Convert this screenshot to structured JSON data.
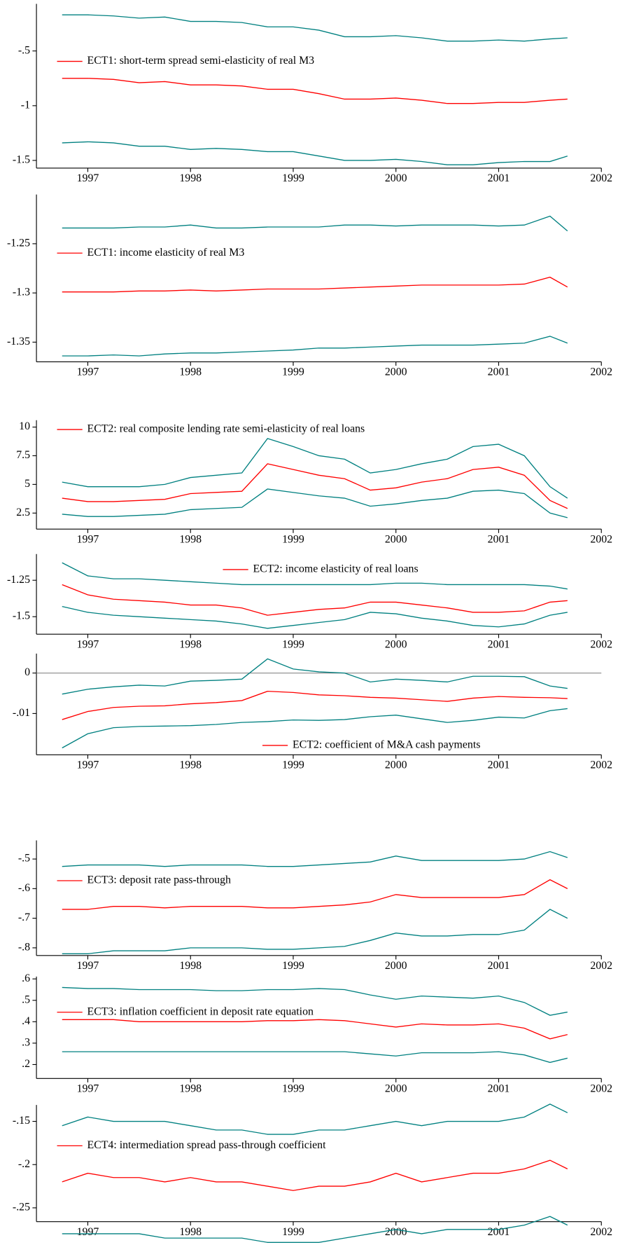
{
  "chart_data": [
    {
      "type": "line",
      "legend": "center left",
      "xlim": [
        1996.5,
        2002
      ],
      "xticks": [
        1997,
        1998,
        1999,
        2000,
        2001,
        2002
      ],
      "ylim": [
        -1.57,
        -0.07
      ],
      "yticks": [
        {
          "value": -0.5,
          "label": "-.5"
        },
        -1,
        -1.5
      ],
      "x": [
        1996.75,
        1997,
        1997.25,
        1997.5,
        1997.75,
        1998,
        1998.25,
        1998.5,
        1998.75,
        1999,
        1999.25,
        1999.5,
        1999.75,
        2000,
        2000.25,
        2000.5,
        2000.75,
        2001,
        2001.25,
        2001.5,
        2001.67
      ],
      "series": [
        {
          "color": "#008080",
          "values": [
            -0.17,
            -0.17,
            -0.18,
            -0.2,
            -0.19,
            -0.23,
            -0.23,
            -0.24,
            -0.28,
            -0.28,
            -0.31,
            -0.37,
            -0.37,
            -0.36,
            -0.38,
            -0.41,
            -0.41,
            -0.4,
            -0.41,
            -0.39,
            -0.38
          ]
        },
        {
          "name": "ECT1: short-term spread semi-elasticity of real M3",
          "color": "#ff0000",
          "values": [
            -0.75,
            -0.75,
            -0.76,
            -0.79,
            -0.78,
            -0.81,
            -0.81,
            -0.82,
            -0.85,
            -0.85,
            -0.89,
            -0.94,
            -0.94,
            -0.93,
            -0.95,
            -0.98,
            -0.98,
            -0.97,
            -0.97,
            -0.95,
            -0.94
          ]
        },
        {
          "color": "#008080",
          "values": [
            -1.34,
            -1.33,
            -1.34,
            -1.37,
            -1.37,
            -1.4,
            -1.39,
            -1.4,
            -1.42,
            -1.42,
            -1.46,
            -1.5,
            -1.5,
            -1.49,
            -1.51,
            -1.54,
            -1.54,
            -1.52,
            -1.51,
            -1.51,
            -1.46
          ]
        }
      ]
    },
    {
      "type": "line",
      "legend": "center left",
      "xlim": [
        1996.5,
        2002
      ],
      "xticks": [
        1997,
        1998,
        1999,
        2000,
        2001,
        2002
      ],
      "ylim": [
        -1.37,
        -1.2
      ],
      "yticks": [
        -1.25,
        -1.3,
        -1.35
      ],
      "x": [
        1996.75,
        1997,
        1997.25,
        1997.5,
        1997.75,
        1998,
        1998.25,
        1998.5,
        1998.75,
        1999,
        1999.25,
        1999.5,
        1999.75,
        2000,
        2000.25,
        2000.5,
        2000.75,
        2001,
        2001.25,
        2001.5,
        2001.67
      ],
      "series": [
        {
          "color": "#008080",
          "values": [
            -1.234,
            -1.234,
            -1.234,
            -1.233,
            -1.233,
            -1.231,
            -1.234,
            -1.234,
            -1.233,
            -1.233,
            -1.233,
            -1.231,
            -1.231,
            -1.232,
            -1.231,
            -1.231,
            -1.231,
            -1.232,
            -1.231,
            -1.222,
            -1.237
          ]
        },
        {
          "name": "ECT1: income elasticity of real M3",
          "color": "#ff0000",
          "values": [
            -1.299,
            -1.299,
            -1.299,
            -1.298,
            -1.298,
            -1.297,
            -1.298,
            -1.297,
            -1.296,
            -1.296,
            -1.296,
            -1.295,
            -1.294,
            -1.293,
            -1.292,
            -1.292,
            -1.292,
            -1.292,
            -1.291,
            -1.284,
            -1.294
          ]
        },
        {
          "color": "#008080",
          "values": [
            -1.364,
            -1.364,
            -1.363,
            -1.364,
            -1.362,
            -1.361,
            -1.361,
            -1.36,
            -1.359,
            -1.358,
            -1.356,
            -1.356,
            -1.355,
            -1.354,
            -1.353,
            -1.353,
            -1.353,
            -1.352,
            -1.351,
            -1.344,
            -1.351
          ]
        }
      ]
    },
    {
      "type": "line",
      "legend": "upper left",
      "xlim": [
        1996.5,
        2002
      ],
      "xticks": [
        1997,
        1998,
        1999,
        2000,
        2001,
        2002
      ],
      "ylim": [
        1.1,
        10.6
      ],
      "yticks": [
        10,
        7.5,
        5,
        2.5
      ],
      "x": [
        1996.75,
        1997,
        1997.25,
        1997.5,
        1997.75,
        1998,
        1998.25,
        1998.5,
        1998.75,
        1999,
        1999.25,
        1999.5,
        1999.75,
        2000,
        2000.25,
        2000.5,
        2000.75,
        2001,
        2001.25,
        2001.5,
        2001.67
      ],
      "series": [
        {
          "color": "#008080",
          "values": [
            5.2,
            4.8,
            4.8,
            4.8,
            5.0,
            5.6,
            5.8,
            6.0,
            9.0,
            8.3,
            7.5,
            7.2,
            6.0,
            6.3,
            6.8,
            7.2,
            8.3,
            8.5,
            7.5,
            4.8,
            3.8
          ]
        },
        {
          "name": "ECT2: real composite lending rate semi-elasticity of real loans",
          "color": "#ff0000",
          "values": [
            3.8,
            3.5,
            3.5,
            3.6,
            3.7,
            4.2,
            4.3,
            4.4,
            6.8,
            6.3,
            5.8,
            5.5,
            4.5,
            4.7,
            5.2,
            5.5,
            6.3,
            6.5,
            5.8,
            3.6,
            2.9
          ]
        },
        {
          "color": "#008080",
          "values": [
            2.4,
            2.2,
            2.2,
            2.3,
            2.4,
            2.8,
            2.9,
            3.0,
            4.6,
            4.3,
            4.0,
            3.8,
            3.1,
            3.3,
            3.6,
            3.8,
            4.4,
            4.5,
            4.2,
            2.5,
            2.1
          ]
        }
      ]
    },
    {
      "type": "line",
      "legend": "upper center",
      "xlim": [
        1996.5,
        2002
      ],
      "xticks": [
        1997,
        1998,
        1999,
        2000,
        2001,
        2002
      ],
      "ylim": [
        -1.62,
        -1.07
      ],
      "yticks": [
        -1.25,
        -1.5
      ],
      "x": [
        1996.75,
        1997,
        1997.25,
        1997.5,
        1997.75,
        1998,
        1998.25,
        1998.5,
        1998.75,
        1999,
        1999.25,
        1999.5,
        1999.75,
        2000,
        2000.25,
        2000.5,
        2000.75,
        2001,
        2001.25,
        2001.5,
        2001.67
      ],
      "series": [
        {
          "color": "#008080",
          "values": [
            -1.13,
            -1.22,
            -1.24,
            -1.24,
            -1.25,
            -1.26,
            -1.27,
            -1.28,
            -1.28,
            -1.28,
            -1.28,
            -1.28,
            -1.28,
            -1.27,
            -1.27,
            -1.28,
            -1.28,
            -1.28,
            -1.28,
            -1.29,
            -1.31
          ]
        },
        {
          "name": "ECT2: income elasticity of real loans",
          "color": "#ff0000",
          "values": [
            -1.28,
            -1.35,
            -1.38,
            -1.39,
            -1.4,
            -1.42,
            -1.42,
            -1.44,
            -1.49,
            -1.47,
            -1.45,
            -1.44,
            -1.4,
            -1.4,
            -1.42,
            -1.44,
            -1.47,
            -1.47,
            -1.46,
            -1.4,
            -1.39
          ]
        },
        {
          "color": "#008080",
          "values": [
            -1.43,
            -1.47,
            -1.49,
            -1.5,
            -1.51,
            -1.52,
            -1.53,
            -1.55,
            -1.58,
            -1.56,
            -1.54,
            -1.52,
            -1.47,
            -1.48,
            -1.51,
            -1.53,
            -1.56,
            -1.57,
            -1.55,
            -1.49,
            -1.47
          ]
        }
      ]
    },
    {
      "type": "line",
      "legend": "lower center",
      "zero_line": true,
      "xlim": [
        1996.5,
        2002
      ],
      "xticks": [
        1997,
        1998,
        1999,
        2000,
        2001,
        2002
      ],
      "ylim": [
        -0.0202,
        0.0048
      ],
      "yticks": [
        0,
        {
          "value": -0.01,
          "label": "-.01"
        }
      ],
      "x": [
        1996.75,
        1997,
        1997.25,
        1997.5,
        1997.75,
        1998,
        1998.25,
        1998.5,
        1998.75,
        1999,
        1999.25,
        1999.5,
        1999.75,
        2000,
        2000.25,
        2000.5,
        2000.75,
        2001,
        2001.25,
        2001.5,
        2001.67
      ],
      "series": [
        {
          "color": "#008080",
          "values": [
            -0.0052,
            -0.004,
            -0.0034,
            -0.003,
            -0.0032,
            -0.002,
            -0.0018,
            -0.0015,
            0.0035,
            0.001,
            0.0003,
            0.0,
            -0.0022,
            -0.0015,
            -0.0018,
            -0.0022,
            -0.0008,
            -0.0008,
            -0.0009,
            -0.0032,
            -0.0038
          ]
        },
        {
          "name": "ECT2: coefficient of M&A cash payments",
          "color": "#ff0000",
          "values": [
            -0.0115,
            -0.0095,
            -0.0085,
            -0.0082,
            -0.0081,
            -0.0076,
            -0.0073,
            -0.0068,
            -0.0045,
            -0.0048,
            -0.0054,
            -0.0056,
            -0.006,
            -0.0062,
            -0.0066,
            -0.007,
            -0.0062,
            -0.0058,
            -0.006,
            -0.0061,
            -0.0063
          ]
        },
        {
          "color": "#008080",
          "values": [
            -0.0185,
            -0.015,
            -0.0135,
            -0.0132,
            -0.0131,
            -0.013,
            -0.0127,
            -0.0122,
            -0.012,
            -0.0116,
            -0.0117,
            -0.0115,
            -0.0108,
            -0.0104,
            -0.0113,
            -0.0122,
            -0.0117,
            -0.0109,
            -0.0111,
            -0.0093,
            -0.0088
          ]
        }
      ]
    },
    {
      "type": "line",
      "legend": "center left",
      "xlim": [
        1996.5,
        2002
      ],
      "xticks": [
        1997,
        1998,
        1999,
        2000,
        2001,
        2002
      ],
      "ylim": [
        -0.826,
        -0.437
      ],
      "yticks": [
        {
          "value": -0.5,
          "label": "-.5"
        },
        {
          "value": -0.6,
          "label": "-.6"
        },
        {
          "value": -0.7,
          "label": "-.7"
        },
        {
          "value": -0.8,
          "label": "-.8"
        }
      ],
      "x": [
        1996.75,
        1997,
        1997.25,
        1997.5,
        1997.75,
        1998,
        1998.25,
        1998.5,
        1998.75,
        1999,
        1999.25,
        1999.5,
        1999.75,
        2000,
        2000.25,
        2000.5,
        2000.75,
        2001,
        2001.25,
        2001.5,
        2001.67
      ],
      "series": [
        {
          "color": "#008080",
          "values": [
            -0.525,
            -0.52,
            -0.52,
            -0.52,
            -0.525,
            -0.52,
            -0.52,
            -0.52,
            -0.525,
            -0.525,
            -0.52,
            -0.515,
            -0.51,
            -0.49,
            -0.505,
            -0.505,
            -0.505,
            -0.505,
            -0.5,
            -0.475,
            -0.495
          ]
        },
        {
          "name": "ECT3: deposit rate pass-through",
          "color": "#ff0000",
          "values": [
            -0.67,
            -0.67,
            -0.66,
            -0.66,
            -0.665,
            -0.66,
            -0.66,
            -0.66,
            -0.665,
            -0.665,
            -0.66,
            -0.655,
            -0.645,
            -0.62,
            -0.63,
            -0.63,
            -0.63,
            -0.63,
            -0.62,
            -0.57,
            -0.6
          ]
        },
        {
          "color": "#008080",
          "values": [
            -0.82,
            -0.82,
            -0.81,
            -0.81,
            -0.81,
            -0.8,
            -0.8,
            -0.8,
            -0.805,
            -0.805,
            -0.8,
            -0.795,
            -0.775,
            -0.75,
            -0.76,
            -0.76,
            -0.755,
            -0.755,
            -0.74,
            -0.67,
            -0.7
          ]
        }
      ]
    },
    {
      "type": "line",
      "legend": "center left",
      "xlim": [
        1996.5,
        2002
      ],
      "xticks": [
        1997,
        1998,
        1999,
        2000,
        2001,
        2002
      ],
      "ylim": [
        0.135,
        0.611
      ],
      "yticks": [
        {
          "value": 0.6,
          "label": ".6"
        },
        {
          "value": 0.5,
          "label": ".5"
        },
        {
          "value": 0.4,
          "label": ".4"
        },
        {
          "value": 0.3,
          "label": ".3"
        },
        {
          "value": 0.2,
          "label": ".2"
        }
      ],
      "x": [
        1996.75,
        1997,
        1997.25,
        1997.5,
        1997.75,
        1998,
        1998.25,
        1998.5,
        1998.75,
        1999,
        1999.25,
        1999.5,
        1999.75,
        2000,
        2000.25,
        2000.5,
        2000.75,
        2001,
        2001.25,
        2001.5,
        2001.67
      ],
      "series": [
        {
          "color": "#008080",
          "values": [
            0.56,
            0.555,
            0.555,
            0.55,
            0.55,
            0.55,
            0.545,
            0.545,
            0.55,
            0.55,
            0.555,
            0.55,
            0.525,
            0.505,
            0.52,
            0.515,
            0.51,
            0.52,
            0.49,
            0.43,
            0.445
          ]
        },
        {
          "name": "ECT3: inflation coefficient in deposit rate equation",
          "color": "#ff0000",
          "values": [
            0.41,
            0.41,
            0.41,
            0.4,
            0.4,
            0.4,
            0.4,
            0.4,
            0.405,
            0.405,
            0.41,
            0.405,
            0.39,
            0.375,
            0.39,
            0.385,
            0.385,
            0.39,
            0.37,
            0.32,
            0.34
          ]
        },
        {
          "color": "#008080",
          "values": [
            0.26,
            0.26,
            0.26,
            0.26,
            0.26,
            0.26,
            0.26,
            0.26,
            0.26,
            0.26,
            0.26,
            0.26,
            0.25,
            0.24,
            0.255,
            0.255,
            0.255,
            0.26,
            0.245,
            0.21,
            0.23
          ]
        }
      ]
    },
    {
      "type": "line",
      "legend": "center left",
      "xlim": [
        1996.5,
        2002
      ],
      "xticks": [
        1997,
        1998,
        1999,
        2000,
        2001,
        2002
      ],
      "ylim": [
        -0.266,
        -0.131
      ],
      "yticks": [
        {
          "value": -0.15,
          "label": "-.15"
        },
        {
          "value": -0.2,
          "label": "-.2"
        },
        {
          "value": -0.25,
          "label": "-.25"
        }
      ],
      "x": [
        1996.75,
        1997,
        1997.25,
        1997.5,
        1997.75,
        1998,
        1998.25,
        1998.5,
        1998.75,
        1999,
        1999.25,
        1999.5,
        1999.75,
        2000,
        2000.25,
        2000.5,
        2000.75,
        2001,
        2001.25,
        2001.5,
        2001.67
      ],
      "series": [
        {
          "color": "#008080",
          "values": [
            -0.155,
            -0.145,
            -0.15,
            -0.15,
            -0.15,
            -0.155,
            -0.16,
            -0.16,
            -0.165,
            -0.165,
            -0.16,
            -0.16,
            -0.155,
            -0.15,
            -0.155,
            -0.15,
            -0.15,
            -0.15,
            -0.145,
            -0.13,
            -0.14
          ]
        },
        {
          "name": "ECT4: intermediation spread pass-through coefficient",
          "color": "#ff0000",
          "values": [
            -0.22,
            -0.21,
            -0.215,
            -0.215,
            -0.22,
            -0.215,
            -0.22,
            -0.22,
            -0.225,
            -0.23,
            -0.225,
            -0.225,
            -0.22,
            -0.21,
            -0.22,
            -0.215,
            -0.21,
            -0.21,
            -0.205,
            -0.195,
            -0.205
          ]
        },
        {
          "color": "#008080",
          "values": [
            -0.28,
            -0.28,
            -0.28,
            -0.28,
            -0.285,
            -0.285,
            -0.285,
            -0.285,
            -0.29,
            -0.29,
            -0.29,
            -0.285,
            -0.28,
            -0.275,
            -0.28,
            -0.275,
            -0.275,
            -0.275,
            -0.27,
            -0.26,
            -0.27
          ]
        }
      ]
    }
  ]
}
